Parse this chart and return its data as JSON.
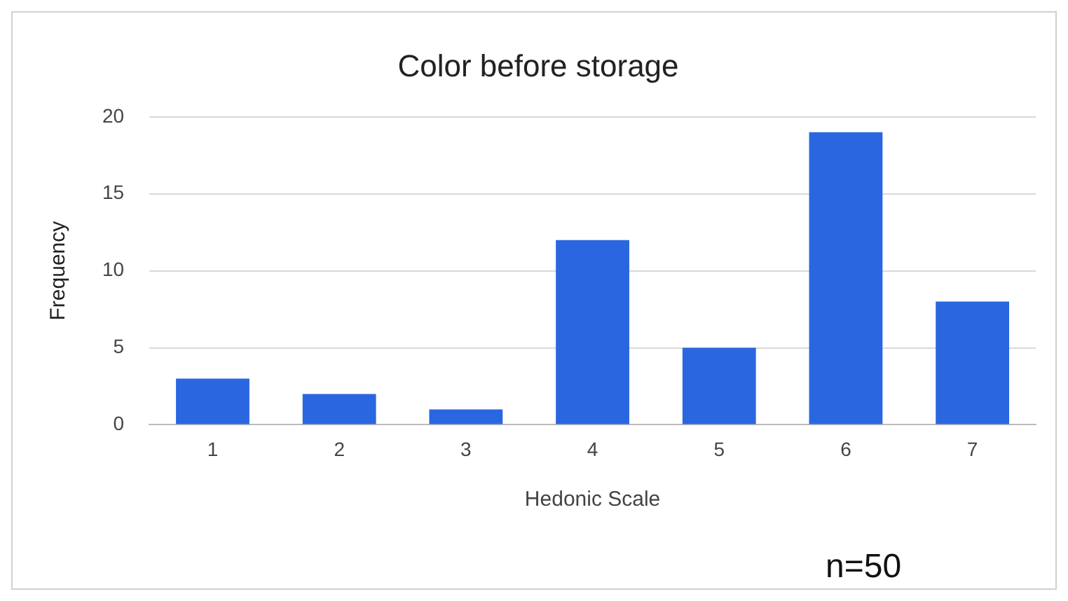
{
  "chart_data": {
    "type": "bar",
    "title": "Color before storage",
    "xlabel": "Hedonic Scale",
    "ylabel": "Frequency",
    "categories": [
      "1",
      "2",
      "3",
      "4",
      "5",
      "6",
      "7"
    ],
    "values": [
      3,
      2,
      1,
      12,
      5,
      19,
      8
    ],
    "color": "#2a66e0",
    "ylim": [
      0,
      20
    ],
    "yticks": [
      0,
      5,
      10,
      15,
      20
    ],
    "grid": "y",
    "annotations": [
      "n=50"
    ]
  }
}
